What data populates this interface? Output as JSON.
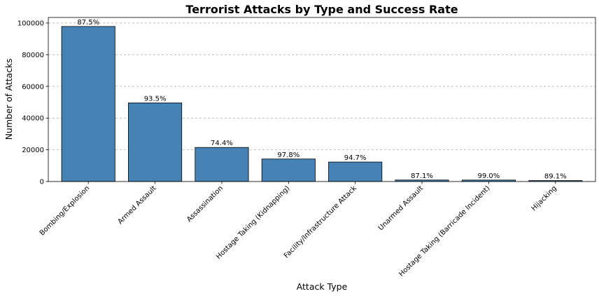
{
  "chart_data": {
    "type": "bar",
    "title": "Terrorist Attacks by Type and Success Rate",
    "xlabel": "Attack Type",
    "ylabel": "Number of Attacks",
    "categories": [
      "Bombing/Explosion",
      "Armed Assault",
      "Assassination",
      "Hostage Taking (Kidnapping)",
      "Facility/Infrastructure Attack",
      "Unarmed Assault",
      "Hostage Taking (Barricade Incident)",
      "Hijacking"
    ],
    "values": [
      97800,
      49600,
      21500,
      14200,
      12300,
      950,
      920,
      600
    ],
    "data_labels": [
      "87.5%",
      "93.5%",
      "74.4%",
      "97.8%",
      "94.7%",
      "87.1%",
      "99.0%",
      "89.1%"
    ],
    "ylim": [
      0,
      103500
    ],
    "yticks": [
      0,
      20000,
      40000,
      60000,
      80000,
      100000
    ],
    "grid": "y-dashed",
    "bar_color": "#4682b4"
  }
}
